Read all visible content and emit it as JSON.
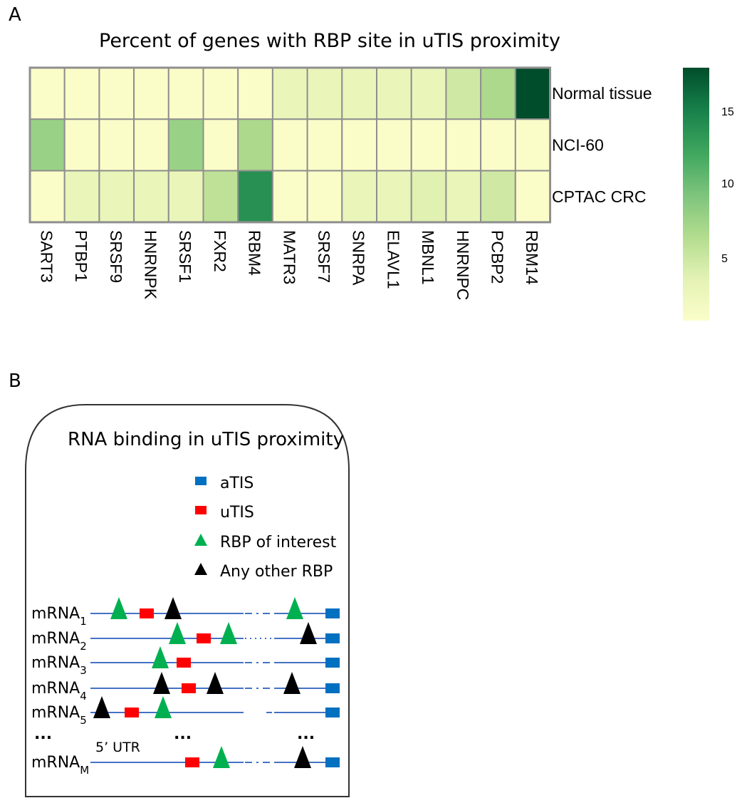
{
  "panels": {
    "a": "A",
    "b": "B"
  },
  "heatmap": {
    "title": "Percent of genes with RBP site in uTIS proximity",
    "colorbar_ticks": [
      "15",
      "10",
      "5"
    ],
    "colorbar_tick_values": [
      15,
      10,
      5
    ],
    "colorbar_range": [
      1,
      18
    ],
    "colorscale": [
      "#fbfdc9",
      "#e3f2b4",
      "#b2dc8e",
      "#7cc47c",
      "#3ea65e",
      "#17804a",
      "#004d2b"
    ]
  },
  "chart_data": {
    "type": "heatmap",
    "title": "Percent of genes with RBP site in uTIS proximity",
    "rows": [
      "Normal tissue",
      "NCI-60",
      "CPTAC CRC"
    ],
    "columns": [
      "SART3",
      "PTBP1",
      "SRSF9",
      "HNRNPK",
      "SRSF1",
      "FXR2",
      "RBM4",
      "MATR3",
      "SRSF7",
      "SNRPA",
      "ELAVL1",
      "MBNL1",
      "HNRNPC",
      "PCBP2",
      "RBM14"
    ],
    "values": [
      [
        1,
        1,
        1,
        1,
        1,
        1,
        1,
        3,
        3,
        3,
        3,
        3,
        5,
        7,
        18
      ],
      [
        8,
        1,
        1,
        1,
        8,
        1,
        7,
        1,
        1,
        1,
        1,
        1,
        1,
        1,
        1
      ],
      [
        1,
        3,
        3,
        3,
        3,
        6,
        14,
        1,
        1,
        3,
        3,
        4,
        3,
        5,
        1
      ]
    ],
    "colorbar_range": [
      1,
      18
    ],
    "colorbar_ticks": [
      5,
      10,
      15
    ]
  },
  "diagram": {
    "title": "RNA binding in uTIS proximity",
    "legend": [
      {
        "label": "aTIS",
        "symbol": "square",
        "color": "#0070c0"
      },
      {
        "label": "uTIS",
        "symbol": "square",
        "color": "#ff0000"
      },
      {
        "label": "RBP of interest",
        "symbol": "triangle",
        "color": "#00b050"
      },
      {
        "label": "Any other RBP",
        "symbol": "triangle",
        "color": "#000000"
      }
    ],
    "mrnas": [
      {
        "name": "mRNA",
        "sub": "1"
      },
      {
        "name": "mRNA",
        "sub": "2"
      },
      {
        "name": "mRNA",
        "sub": "3"
      },
      {
        "name": "mRNA",
        "sub": "4"
      },
      {
        "name": "mRNA",
        "sub": "5"
      },
      {
        "name": "mRNA",
        "sub": "M"
      }
    ],
    "ellipsis": "...",
    "utr_label": "5’ UTR",
    "line_color": "#4472c4"
  }
}
